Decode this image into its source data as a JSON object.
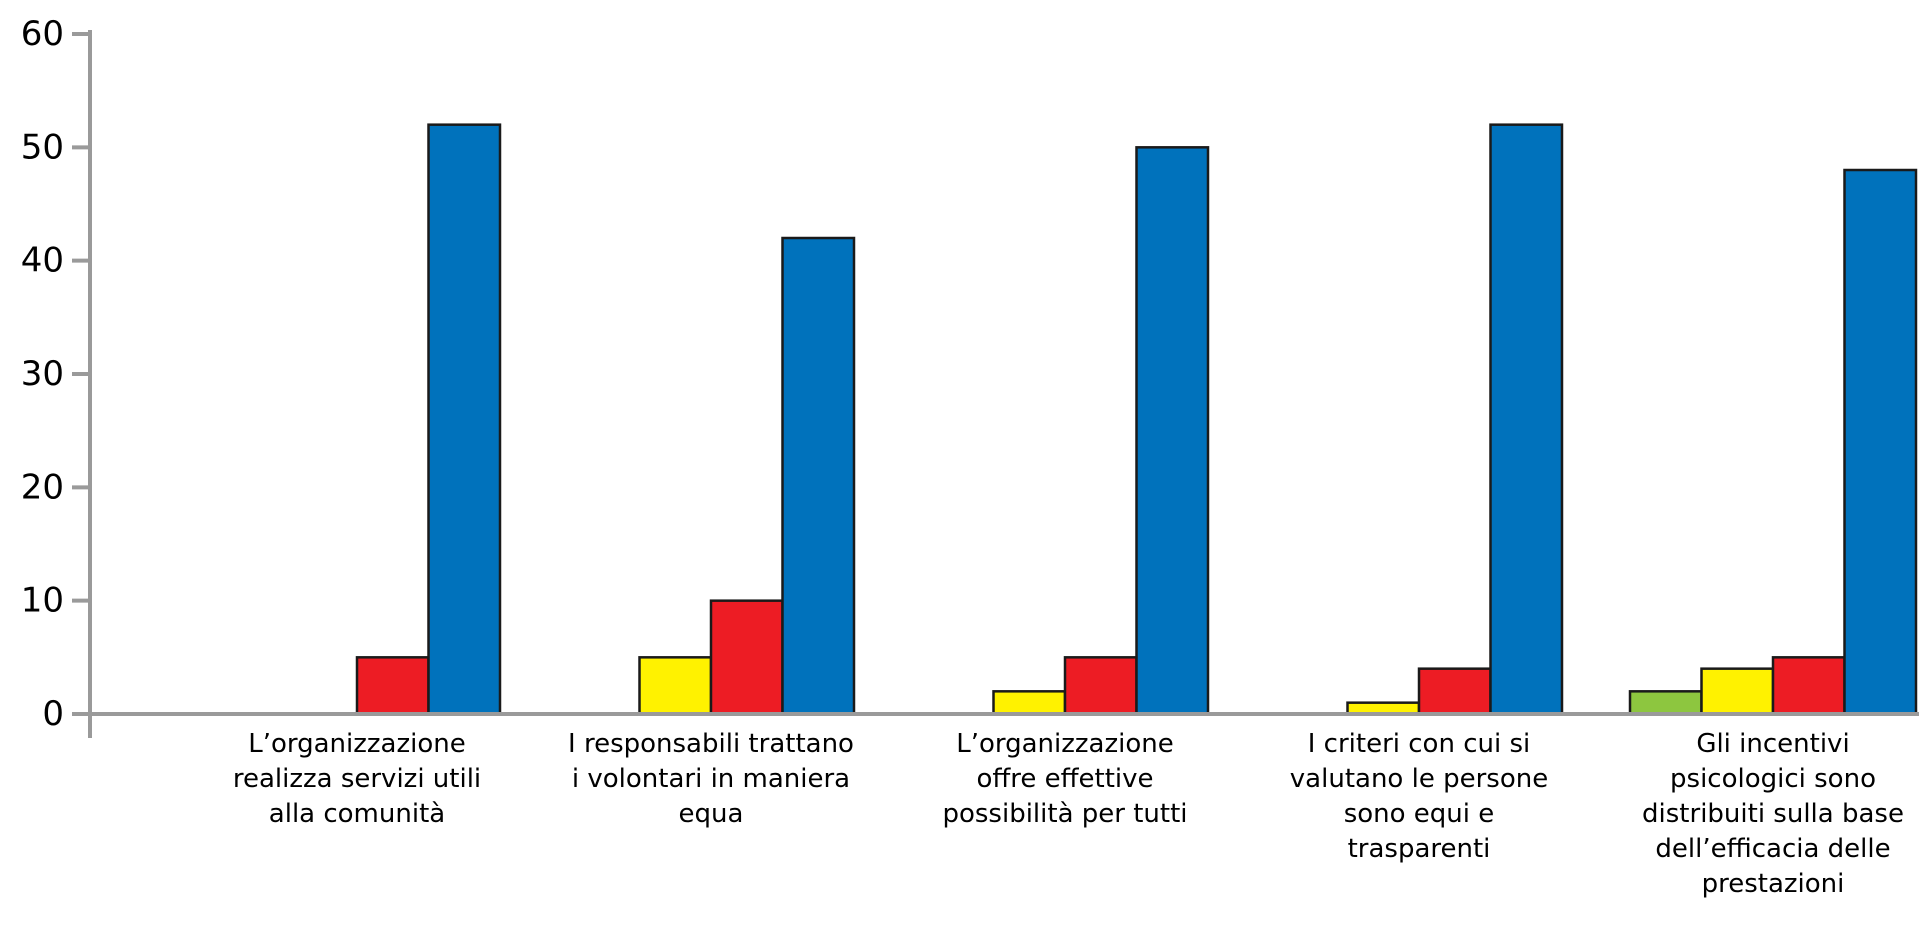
{
  "chart_data": {
    "type": "bar",
    "title": "",
    "xlabel": "",
    "ylabel": "",
    "ylim": [
      0,
      60
    ],
    "yticks": [
      0,
      10,
      20,
      30,
      40,
      50,
      60
    ],
    "legend": "none",
    "grid": false,
    "categories": [
      [
        "L’organizzazione",
        "realizza servizi utili",
        "alla comunità"
      ],
      [
        "I responsabili trattano",
        "i volontari in maniera",
        "equa"
      ],
      [
        "L’organizzazione",
        "offre effettive",
        "possibilità per tutti"
      ],
      [
        "I criteri con cui si",
        "valutano le persone",
        "sono equi e",
        "trasparenti"
      ],
      [
        "Gli incentivi",
        "psicologici sono",
        "distribuiti sulla base",
        "dell’efficacia delle",
        "prestazioni"
      ]
    ],
    "series": [
      {
        "color": "#8dc63f",
        "values": [
          0,
          0,
          0,
          0,
          2
        ]
      },
      {
        "color": "#fff200",
        "values": [
          0,
          5,
          2,
          1,
          4
        ]
      },
      {
        "color": "#ed1c24",
        "values": [
          5,
          10,
          5,
          4,
          5
        ]
      },
      {
        "color": "#0072bc",
        "values": [
          52,
          42,
          50,
          52,
          48
        ]
      }
    ]
  },
  "colors": {
    "axis": "#9a9a9a",
    "bar_outline": "#1a1a1a"
  }
}
